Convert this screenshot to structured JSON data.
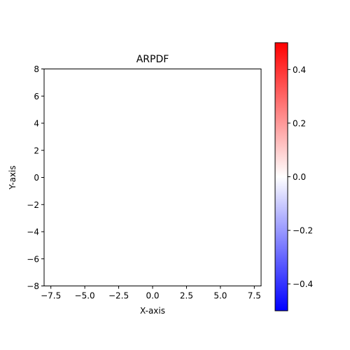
{
  "chart_data": {
    "type": "heatmap",
    "title": "ARPDF",
    "xlabel": "X-axis",
    "ylabel": "Y-axis",
    "xlim": [
      -8,
      8
    ],
    "ylim": [
      -8,
      8
    ],
    "x_ticks": [
      -7.5,
      -5.0,
      -2.5,
      0.0,
      2.5,
      5.0,
      7.5
    ],
    "x_tick_labels": [
      "−7.5",
      "−5.0",
      "−2.5",
      "0.0",
      "2.5",
      "5.0",
      "7.5"
    ],
    "y_ticks": [
      -8,
      -6,
      -4,
      -2,
      0,
      2,
      4,
      6,
      8
    ],
    "y_tick_labels": [
      "−8",
      "−6",
      "−4",
      "−2",
      "0",
      "2",
      "4",
      "6",
      "8"
    ],
    "values": [],
    "grid": false,
    "colorbar": {
      "colormap": "bwr",
      "vmin": -0.5,
      "vmax": 0.5,
      "low_color": "#0000ff",
      "mid_color": "#ffffff",
      "high_color": "#ff0000",
      "ticks": [
        -0.4,
        -0.2,
        0.0,
        0.2,
        0.4
      ],
      "tick_labels": [
        "−0.4",
        "−0.2",
        "0.0",
        "0.2",
        "0.4"
      ]
    }
  }
}
